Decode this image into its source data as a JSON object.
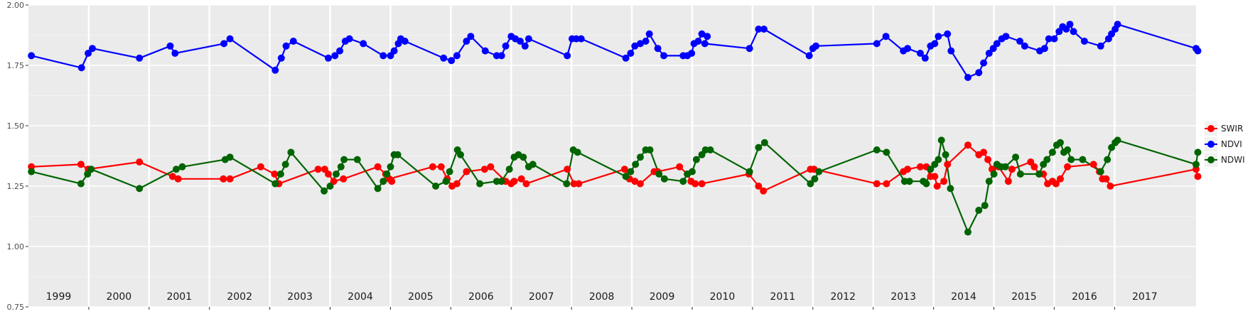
{
  "chart_data": {
    "type": "line",
    "title": "",
    "xlabel": "",
    "ylabel": "",
    "ylim": [
      0.75,
      2.0
    ],
    "xlim": [
      1998.5,
      2017.85
    ],
    "y_ticks": [
      "0.75",
      "1.00",
      "1.25",
      "1.50",
      "1.75",
      "2.00"
    ],
    "y_tick_values": [
      0.75,
      1.0,
      1.25,
      1.5,
      1.75,
      2.0
    ],
    "years": [
      "1999",
      "2000",
      "2001",
      "2002",
      "2003",
      "2004",
      "2005",
      "2006",
      "2007",
      "2008",
      "2009",
      "2010",
      "2011",
      "2012",
      "2013",
      "2014",
      "2015",
      "2016",
      "2017"
    ],
    "grid": true,
    "legend_position": "right",
    "legend": [
      "SWIR",
      "NDVI",
      "NDWI"
    ],
    "series": [
      {
        "name": "SWIR",
        "color": "#ff0000",
        "points": [
          [
            1998.55,
            1.33
          ],
          [
            1999.37,
            1.34
          ],
          [
            1999.49,
            1.32
          ],
          [
            2000.34,
            1.35
          ],
          [
            2000.89,
            1.29
          ],
          [
            2000.98,
            1.28
          ],
          [
            2001.73,
            1.28
          ],
          [
            2001.84,
            1.28
          ],
          [
            2002.35,
            1.33
          ],
          [
            2002.58,
            1.3
          ],
          [
            2002.65,
            1.26
          ],
          [
            2003.3,
            1.32
          ],
          [
            2003.41,
            1.32
          ],
          [
            2003.47,
            1.3
          ],
          [
            2003.56,
            1.27
          ],
          [
            2003.72,
            1.28
          ],
          [
            2004.29,
            1.33
          ],
          [
            2004.42,
            1.3
          ],
          [
            2004.52,
            1.27
          ],
          [
            2004.48,
            1.28
          ],
          [
            2005.2,
            1.33
          ],
          [
            2005.34,
            1.33
          ],
          [
            2005.44,
            1.28
          ],
          [
            2005.52,
            1.25
          ],
          [
            2005.6,
            1.26
          ],
          [
            2005.76,
            1.31
          ],
          [
            2006.06,
            1.32
          ],
          [
            2006.16,
            1.33
          ],
          [
            2006.41,
            1.27
          ],
          [
            2006.5,
            1.26
          ],
          [
            2006.55,
            1.27
          ],
          [
            2006.67,
            1.28
          ],
          [
            2006.75,
            1.26
          ],
          [
            2007.43,
            1.32
          ],
          [
            2007.54,
            1.26
          ],
          [
            2007.62,
            1.26
          ],
          [
            2008.38,
            1.32
          ],
          [
            2008.46,
            1.28
          ],
          [
            2008.55,
            1.27
          ],
          [
            2008.64,
            1.26
          ],
          [
            2008.87,
            1.31
          ],
          [
            2008.93,
            1.31
          ],
          [
            2009.29,
            1.33
          ],
          [
            2009.42,
            1.3
          ],
          [
            2009.48,
            1.27
          ],
          [
            2009.55,
            1.26
          ],
          [
            2009.66,
            1.26
          ],
          [
            2010.44,
            1.3
          ],
          [
            2010.6,
            1.25
          ],
          [
            2010.68,
            1.23
          ],
          [
            2011.46,
            1.32
          ],
          [
            2011.52,
            1.32
          ],
          [
            2012.56,
            1.26
          ],
          [
            2012.72,
            1.26
          ],
          [
            2013.0,
            1.31
          ],
          [
            2013.07,
            1.32
          ],
          [
            2013.28,
            1.33
          ],
          [
            2013.38,
            1.33
          ],
          [
            2013.45,
            1.29
          ],
          [
            2013.52,
            1.29
          ],
          [
            2013.56,
            1.25
          ],
          [
            2013.67,
            1.27
          ],
          [
            2013.73,
            1.34
          ],
          [
            2014.07,
            1.42
          ],
          [
            2014.25,
            1.38
          ],
          [
            2014.33,
            1.39
          ],
          [
            2014.4,
            1.36
          ],
          [
            2014.47,
            1.32
          ],
          [
            2014.58,
            1.33
          ],
          [
            2014.74,
            1.27
          ],
          [
            2014.8,
            1.32
          ],
          [
            2015.11,
            1.35
          ],
          [
            2015.17,
            1.33
          ],
          [
            2015.25,
            1.3
          ],
          [
            2015.32,
            1.3
          ],
          [
            2015.39,
            1.26
          ],
          [
            2015.47,
            1.27
          ],
          [
            2015.53,
            1.26
          ],
          [
            2015.6,
            1.28
          ],
          [
            2015.72,
            1.33
          ],
          [
            2016.15,
            1.34
          ],
          [
            2016.25,
            1.31
          ],
          [
            2016.3,
            1.28
          ],
          [
            2016.36,
            1.28
          ],
          [
            2016.43,
            1.25
          ],
          [
            2017.85,
            1.32
          ],
          [
            2017.88,
            1.29
          ]
        ]
      },
      {
        "name": "NDVI",
        "color": "#0000ff",
        "points": [
          [
            1998.55,
            1.79
          ],
          [
            1999.38,
            1.74
          ],
          [
            1999.49,
            1.8
          ],
          [
            1999.56,
            1.82
          ],
          [
            2000.34,
            1.78
          ],
          [
            2000.85,
            1.83
          ],
          [
            2000.93,
            1.8
          ],
          [
            2001.74,
            1.84
          ],
          [
            2001.84,
            1.86
          ],
          [
            2002.59,
            1.73
          ],
          [
            2002.69,
            1.78
          ],
          [
            2002.77,
            1.83
          ],
          [
            2002.89,
            1.85
          ],
          [
            2003.47,
            1.78
          ],
          [
            2003.58,
            1.79
          ],
          [
            2003.66,
            1.81
          ],
          [
            2003.75,
            1.85
          ],
          [
            2003.82,
            1.86
          ],
          [
            2004.05,
            1.84
          ],
          [
            2004.38,
            1.79
          ],
          [
            2004.5,
            1.79
          ],
          [
            2004.56,
            1.81
          ],
          [
            2004.63,
            1.84
          ],
          [
            2004.67,
            1.86
          ],
          [
            2004.74,
            1.85
          ],
          [
            2005.38,
            1.78
          ],
          [
            2005.51,
            1.77
          ],
          [
            2005.6,
            1.79
          ],
          [
            2005.76,
            1.85
          ],
          [
            2005.83,
            1.87
          ],
          [
            2006.07,
            1.81
          ],
          [
            2006.26,
            1.79
          ],
          [
            2006.34,
            1.79
          ],
          [
            2006.41,
            1.83
          ],
          [
            2006.5,
            1.87
          ],
          [
            2006.57,
            1.86
          ],
          [
            2006.65,
            1.85
          ],
          [
            2006.73,
            1.83
          ],
          [
            2006.79,
            1.86
          ],
          [
            2007.43,
            1.79
          ],
          [
            2007.51,
            1.86
          ],
          [
            2007.58,
            1.86
          ],
          [
            2007.66,
            1.86
          ],
          [
            2008.4,
            1.78
          ],
          [
            2008.48,
            1.8
          ],
          [
            2008.55,
            1.83
          ],
          [
            2008.64,
            1.84
          ],
          [
            2008.73,
            1.85
          ],
          [
            2008.79,
            1.88
          ],
          [
            2008.93,
            1.82
          ],
          [
            2009.03,
            1.79
          ],
          [
            2009.35,
            1.79
          ],
          [
            2009.42,
            1.79
          ],
          [
            2009.49,
            1.8
          ],
          [
            2009.53,
            1.84
          ],
          [
            2009.6,
            1.85
          ],
          [
            2009.66,
            1.88
          ],
          [
            2009.75,
            1.87
          ],
          [
            2009.71,
            1.84
          ],
          [
            2010.45,
            1.82
          ],
          [
            2010.6,
            1.9
          ],
          [
            2010.69,
            1.9
          ],
          [
            2011.44,
            1.79
          ],
          [
            2011.5,
            1.82
          ],
          [
            2011.55,
            1.83
          ],
          [
            2012.56,
            1.84
          ],
          [
            2012.71,
            1.87
          ],
          [
            2013.0,
            1.81
          ],
          [
            2013.07,
            1.82
          ],
          [
            2013.28,
            1.8
          ],
          [
            2013.36,
            1.78
          ],
          [
            2013.45,
            1.83
          ],
          [
            2013.52,
            1.84
          ],
          [
            2013.58,
            1.87
          ],
          [
            2013.73,
            1.88
          ],
          [
            2013.79,
            1.81
          ],
          [
            2014.07,
            1.7
          ],
          [
            2014.25,
            1.72
          ],
          [
            2014.33,
            1.76
          ],
          [
            2014.42,
            1.8
          ],
          [
            2014.49,
            1.82
          ],
          [
            2014.55,
            1.84
          ],
          [
            2014.63,
            1.86
          ],
          [
            2014.7,
            1.87
          ],
          [
            2014.93,
            1.85
          ],
          [
            2015.01,
            1.83
          ],
          [
            2015.26,
            1.81
          ],
          [
            2015.34,
            1.82
          ],
          [
            2015.41,
            1.86
          ],
          [
            2015.5,
            1.86
          ],
          [
            2015.58,
            1.89
          ],
          [
            2015.64,
            1.91
          ],
          [
            2015.7,
            1.9
          ],
          [
            2015.76,
            1.92
          ],
          [
            2015.82,
            1.89
          ],
          [
            2016.0,
            1.85
          ],
          [
            2016.27,
            1.83
          ],
          [
            2016.4,
            1.86
          ],
          [
            2016.45,
            1.88
          ],
          [
            2016.51,
            1.9
          ],
          [
            2016.55,
            1.92
          ],
          [
            2017.85,
            1.82
          ],
          [
            2017.88,
            1.81
          ]
        ]
      },
      {
        "name": "NDWI",
        "color": "#006400",
        "points": [
          [
            1998.55,
            1.31
          ],
          [
            1999.37,
            1.26
          ],
          [
            1999.48,
            1.3
          ],
          [
            1999.54,
            1.32
          ],
          [
            2000.34,
            1.24
          ],
          [
            2000.95,
            1.32
          ],
          [
            2001.05,
            1.33
          ],
          [
            2001.76,
            1.36
          ],
          [
            2001.84,
            1.37
          ],
          [
            2002.59,
            1.26
          ],
          [
            2002.68,
            1.3
          ],
          [
            2002.76,
            1.34
          ],
          [
            2002.85,
            1.39
          ],
          [
            2003.4,
            1.23
          ],
          [
            2003.5,
            1.25
          ],
          [
            2003.6,
            1.3
          ],
          [
            2003.68,
            1.33
          ],
          [
            2003.73,
            1.36
          ],
          [
            2003.95,
            1.36
          ],
          [
            2004.29,
            1.24
          ],
          [
            2004.38,
            1.27
          ],
          [
            2004.44,
            1.3
          ],
          [
            2004.5,
            1.33
          ],
          [
            2004.56,
            1.38
          ],
          [
            2004.62,
            1.38
          ],
          [
            2005.25,
            1.25
          ],
          [
            2005.42,
            1.27
          ],
          [
            2005.48,
            1.31
          ],
          [
            2005.61,
            1.4
          ],
          [
            2005.66,
            1.38
          ],
          [
            2005.98,
            1.26
          ],
          [
            2006.26,
            1.27
          ],
          [
            2006.34,
            1.27
          ],
          [
            2006.47,
            1.32
          ],
          [
            2006.55,
            1.37
          ],
          [
            2006.62,
            1.38
          ],
          [
            2006.7,
            1.37
          ],
          [
            2006.79,
            1.33
          ],
          [
            2006.86,
            1.34
          ],
          [
            2007.42,
            1.26
          ],
          [
            2007.53,
            1.4
          ],
          [
            2007.6,
            1.39
          ],
          [
            2008.4,
            1.29
          ],
          [
            2008.48,
            1.31
          ],
          [
            2008.56,
            1.34
          ],
          [
            2008.64,
            1.37
          ],
          [
            2008.73,
            1.4
          ],
          [
            2008.8,
            1.4
          ],
          [
            2008.95,
            1.3
          ],
          [
            2009.04,
            1.28
          ],
          [
            2009.35,
            1.27
          ],
          [
            2009.42,
            1.3
          ],
          [
            2009.5,
            1.31
          ],
          [
            2009.57,
            1.36
          ],
          [
            2009.66,
            1.38
          ],
          [
            2009.72,
            1.4
          ],
          [
            2009.8,
            1.4
          ],
          [
            2010.45,
            1.31
          ],
          [
            2010.6,
            1.41
          ],
          [
            2010.7,
            1.43
          ],
          [
            2011.46,
            1.26
          ],
          [
            2011.53,
            1.28
          ],
          [
            2011.6,
            1.31
          ],
          [
            2012.56,
            1.4
          ],
          [
            2012.72,
            1.39
          ],
          [
            2013.02,
            1.27
          ],
          [
            2013.1,
            1.27
          ],
          [
            2013.33,
            1.27
          ],
          [
            2013.38,
            1.26
          ],
          [
            2013.45,
            1.32
          ],
          [
            2013.52,
            1.34
          ],
          [
            2013.58,
            1.36
          ],
          [
            2013.63,
            1.44
          ],
          [
            2013.7,
            1.38
          ],
          [
            2013.78,
            1.24
          ],
          [
            2014.07,
            1.06
          ],
          [
            2014.25,
            1.15
          ],
          [
            2014.35,
            1.17
          ],
          [
            2014.42,
            1.27
          ],
          [
            2014.5,
            1.3
          ],
          [
            2014.55,
            1.34
          ],
          [
            2014.62,
            1.33
          ],
          [
            2014.69,
            1.33
          ],
          [
            2014.86,
            1.37
          ],
          [
            2014.94,
            1.3
          ],
          [
            2015.25,
            1.3
          ],
          [
            2015.32,
            1.34
          ],
          [
            2015.38,
            1.36
          ],
          [
            2015.47,
            1.39
          ],
          [
            2015.54,
            1.42
          ],
          [
            2015.6,
            1.43
          ],
          [
            2015.66,
            1.39
          ],
          [
            2015.72,
            1.4
          ],
          [
            2015.78,
            1.36
          ],
          [
            2015.97,
            1.36
          ],
          [
            2016.27,
            1.31
          ],
          [
            2016.38,
            1.36
          ],
          [
            2016.45,
            1.41
          ],
          [
            2016.51,
            1.43
          ],
          [
            2016.55,
            1.44
          ],
          [
            2017.85,
            1.34
          ],
          [
            2017.88,
            1.39
          ]
        ]
      }
    ]
  }
}
